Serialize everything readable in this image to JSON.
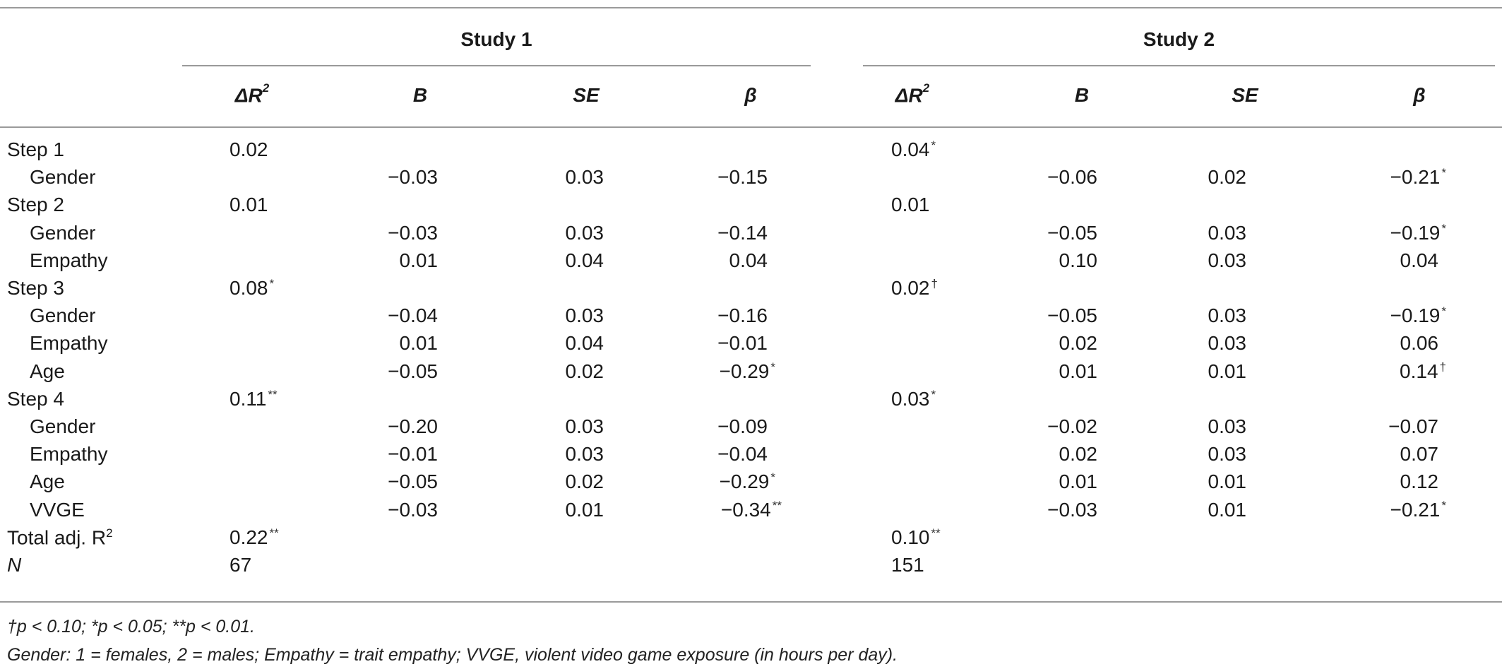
{
  "table": {
    "groups": [
      "Study 1",
      "Study 2"
    ],
    "columns": [
      "ΔR",
      "B",
      "SE",
      "β",
      "ΔR",
      "B",
      "SE",
      "β"
    ],
    "column_superscripts": [
      "2",
      "",
      "",
      "",
      "2",
      "",
      "",
      ""
    ],
    "rows": [
      {
        "label": "Step 1",
        "indent": false,
        "cells": [
          [
            "0.02",
            ""
          ],
          [
            "",
            ""
          ],
          [
            "",
            ""
          ],
          [
            "",
            ""
          ],
          [
            "0.04",
            "*"
          ],
          [
            "",
            ""
          ],
          [
            "",
            ""
          ],
          [
            "",
            ""
          ]
        ]
      },
      {
        "label": "Gender",
        "indent": true,
        "cells": [
          [
            "",
            ""
          ],
          [
            "−0.03",
            ""
          ],
          [
            "0.03",
            ""
          ],
          [
            "−0.15",
            ""
          ],
          [
            "",
            ""
          ],
          [
            "−0.06",
            ""
          ],
          [
            "0.02",
            ""
          ],
          [
            "−0.21",
            "*"
          ]
        ]
      },
      {
        "label": "Step 2",
        "indent": false,
        "cells": [
          [
            "0.01",
            ""
          ],
          [
            "",
            ""
          ],
          [
            "",
            ""
          ],
          [
            "",
            ""
          ],
          [
            "0.01",
            ""
          ],
          [
            "",
            ""
          ],
          [
            "",
            ""
          ],
          [
            "",
            ""
          ]
        ]
      },
      {
        "label": "Gender",
        "indent": true,
        "cells": [
          [
            "",
            ""
          ],
          [
            "−0.03",
            ""
          ],
          [
            "0.03",
            ""
          ],
          [
            "−0.14",
            ""
          ],
          [
            "",
            ""
          ],
          [
            "−0.05",
            ""
          ],
          [
            "0.03",
            ""
          ],
          [
            "−0.19",
            "*"
          ]
        ]
      },
      {
        "label": "Empathy",
        "indent": true,
        "cells": [
          [
            "",
            ""
          ],
          [
            "0.01",
            ""
          ],
          [
            "0.04",
            ""
          ],
          [
            "0.04",
            ""
          ],
          [
            "",
            ""
          ],
          [
            "0.10",
            ""
          ],
          [
            "0.03",
            ""
          ],
          [
            "0.04",
            ""
          ]
        ]
      },
      {
        "label": "Step 3",
        "indent": false,
        "cells": [
          [
            "0.08",
            "*"
          ],
          [
            "",
            ""
          ],
          [
            "",
            ""
          ],
          [
            "",
            ""
          ],
          [
            "0.02",
            "†"
          ],
          [
            "",
            ""
          ],
          [
            "",
            ""
          ],
          [
            "",
            ""
          ]
        ]
      },
      {
        "label": "Gender",
        "indent": true,
        "cells": [
          [
            "",
            ""
          ],
          [
            "−0.04",
            ""
          ],
          [
            "0.03",
            ""
          ],
          [
            "−0.16",
            ""
          ],
          [
            "",
            ""
          ],
          [
            "−0.05",
            ""
          ],
          [
            "0.03",
            ""
          ],
          [
            "−0.19",
            "*"
          ]
        ]
      },
      {
        "label": "Empathy",
        "indent": true,
        "cells": [
          [
            "",
            ""
          ],
          [
            "0.01",
            ""
          ],
          [
            "0.04",
            ""
          ],
          [
            "−0.01",
            ""
          ],
          [
            "",
            ""
          ],
          [
            "0.02",
            ""
          ],
          [
            "0.03",
            ""
          ],
          [
            "0.06",
            ""
          ]
        ]
      },
      {
        "label": "Age",
        "indent": true,
        "cells": [
          [
            "",
            ""
          ],
          [
            "−0.05",
            ""
          ],
          [
            "0.02",
            ""
          ],
          [
            "−0.29",
            "*"
          ],
          [
            "",
            ""
          ],
          [
            "0.01",
            ""
          ],
          [
            "0.01",
            ""
          ],
          [
            "0.14",
            "†"
          ]
        ]
      },
      {
        "label": "Step 4",
        "indent": false,
        "cells": [
          [
            "0.11",
            "**"
          ],
          [
            "",
            ""
          ],
          [
            "",
            ""
          ],
          [
            "",
            ""
          ],
          [
            "0.03",
            "*"
          ],
          [
            "",
            ""
          ],
          [
            "",
            ""
          ],
          [
            "",
            ""
          ]
        ]
      },
      {
        "label": "Gender",
        "indent": true,
        "cells": [
          [
            "",
            ""
          ],
          [
            "−0.20",
            ""
          ],
          [
            "0.03",
            ""
          ],
          [
            "−0.09",
            ""
          ],
          [
            "",
            ""
          ],
          [
            "−0.02",
            ""
          ],
          [
            "0.03",
            ""
          ],
          [
            "−0.07",
            ""
          ]
        ]
      },
      {
        "label": "Empathy",
        "indent": true,
        "cells": [
          [
            "",
            ""
          ],
          [
            "−0.01",
            ""
          ],
          [
            "0.03",
            ""
          ],
          [
            "−0.04",
            ""
          ],
          [
            "",
            ""
          ],
          [
            "0.02",
            ""
          ],
          [
            "0.03",
            ""
          ],
          [
            "0.07",
            ""
          ]
        ]
      },
      {
        "label": "Age",
        "indent": true,
        "cells": [
          [
            "",
            ""
          ],
          [
            "−0.05",
            ""
          ],
          [
            "0.02",
            ""
          ],
          [
            "−0.29",
            "*"
          ],
          [
            "",
            ""
          ],
          [
            "0.01",
            ""
          ],
          [
            "0.01",
            ""
          ],
          [
            "0.12",
            ""
          ]
        ]
      },
      {
        "label": "VVGE",
        "indent": true,
        "cells": [
          [
            "",
            ""
          ],
          [
            "−0.03",
            ""
          ],
          [
            "0.01",
            ""
          ],
          [
            "−0.34",
            "**"
          ],
          [
            "",
            ""
          ],
          [
            "−0.03",
            ""
          ],
          [
            "0.01",
            ""
          ],
          [
            "−0.21",
            "*"
          ]
        ]
      },
      {
        "label": "Total adj. R",
        "label_sup": "2",
        "indent": false,
        "cells": [
          [
            "0.22",
            "**"
          ],
          [
            "",
            ""
          ],
          [
            "",
            ""
          ],
          [
            "",
            ""
          ],
          [
            "0.10",
            "**"
          ],
          [
            "",
            ""
          ],
          [
            "",
            ""
          ],
          [
            "",
            ""
          ]
        ]
      },
      {
        "label": "N",
        "label_italic": true,
        "indent": false,
        "cells": [
          [
            "67",
            ""
          ],
          [
            "",
            ""
          ],
          [
            "",
            ""
          ],
          [
            "",
            ""
          ],
          [
            "151",
            ""
          ],
          [
            "",
            ""
          ],
          [
            "",
            ""
          ],
          [
            "",
            ""
          ]
        ]
      }
    ]
  },
  "footnotes": {
    "line1": "†p < 0.10; *p < 0.05; **p < 0.01.",
    "line2": "Gender: 1 = females, 2 = males; Empathy = trait empathy; VVGE, violent video game exposure (in hours per day)."
  }
}
